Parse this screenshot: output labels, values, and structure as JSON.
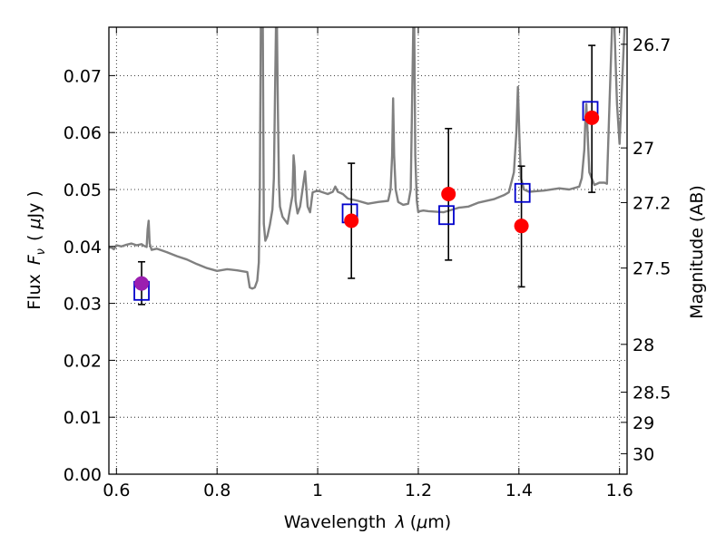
{
  "chart_data": {
    "type": "scatter",
    "title": "",
    "xlabel_parts": [
      "Wavelength",
      "λ",
      "(",
      "μ",
      "m)"
    ],
    "ylabel_parts": [
      "Flux",
      "F",
      "ν",
      "(",
      "μ",
      "Jy",
      ")"
    ],
    "y2label": "Magnitude (AB)",
    "xlim": [
      0.585,
      1.615
    ],
    "ylim": [
      0.0,
      0.0785
    ],
    "grid": true,
    "x_ticks": [
      0.6,
      0.8,
      1.0,
      1.2,
      1.4,
      1.6
    ],
    "x_tick_labels": [
      "0.6",
      "0.8",
      "1",
      "1.2",
      "1.4",
      "1.6"
    ],
    "y_ticks": [
      0.0,
      0.01,
      0.02,
      0.03,
      0.04,
      0.05,
      0.06,
      0.07
    ],
    "y_tick_labels": [
      "0.00",
      "0.01",
      "0.02",
      "0.03",
      "0.04",
      "0.05",
      "0.06",
      "0.07"
    ],
    "y2_ticks": [
      {
        "label": "26.7",
        "flux": 0.0755
      },
      {
        "label": "27",
        "flux": 0.0573
      },
      {
        "label": "27.2",
        "flux": 0.0477
      },
      {
        "label": "27.5",
        "flux": 0.0362
      },
      {
        "label": "28",
        "flux": 0.0228
      },
      {
        "label": "28.5",
        "flux": 0.0144
      },
      {
        "label": "29",
        "flux": 0.0091
      },
      {
        "label": "30",
        "flux": 0.0036
      }
    ],
    "colors": {
      "model": "#808080",
      "observed": "#ff0000",
      "model_phot": "#0000cc",
      "error_bar": "#000000",
      "first_point": "#9b1fb0"
    },
    "model_spectrum": {
      "x": [
        0.585,
        0.59,
        0.595,
        0.6,
        0.61,
        0.62,
        0.63,
        0.64,
        0.65,
        0.655,
        0.66,
        0.662,
        0.664,
        0.666,
        0.67,
        0.68,
        0.7,
        0.72,
        0.74,
        0.76,
        0.78,
        0.8,
        0.82,
        0.84,
        0.86,
        0.865,
        0.87,
        0.875,
        0.88,
        0.883,
        0.885,
        0.887,
        0.889,
        0.891,
        0.893,
        0.896,
        0.9,
        0.905,
        0.91,
        0.913,
        0.915,
        0.917,
        0.919,
        0.921,
        0.923,
        0.925,
        0.93,
        0.94,
        0.95,
        0.952,
        0.954,
        0.956,
        0.96,
        0.965,
        0.97,
        0.975,
        0.98,
        0.985,
        0.99,
        1.0,
        1.02,
        1.03,
        1.035,
        1.04,
        1.05,
        1.06,
        1.08,
        1.1,
        1.12,
        1.14,
        1.145,
        1.148,
        1.15,
        1.152,
        1.155,
        1.16,
        1.17,
        1.18,
        1.185,
        1.19,
        1.192,
        1.194,
        1.197,
        1.2,
        1.203,
        1.21,
        1.22,
        1.25,
        1.28,
        1.3,
        1.32,
        1.35,
        1.37,
        1.38,
        1.39,
        1.395,
        1.398,
        1.401,
        1.404,
        1.41,
        1.42,
        1.45,
        1.48,
        1.5,
        1.52,
        1.525,
        1.53,
        1.532,
        1.534,
        1.536,
        1.54,
        1.55,
        1.56,
        1.565,
        1.57,
        1.575,
        1.58,
        1.585,
        1.59,
        1.595,
        1.6,
        1.61,
        1.615
      ],
      "y": [
        0.0398,
        0.0398,
        0.0395,
        0.0402,
        0.04,
        0.0403,
        0.0405,
        0.0402,
        0.0404,
        0.0401,
        0.0399,
        0.043,
        0.0445,
        0.0405,
        0.0394,
        0.0396,
        0.039,
        0.0383,
        0.0377,
        0.0369,
        0.0362,
        0.0357,
        0.036,
        0.0358,
        0.0355,
        0.0328,
        0.0326,
        0.0328,
        0.034,
        0.0372,
        0.05,
        0.0785,
        0.0785,
        0.0785,
        0.044,
        0.041,
        0.0418,
        0.0438,
        0.0465,
        0.052,
        0.065,
        0.0785,
        0.0785,
        0.063,
        0.051,
        0.047,
        0.0452,
        0.044,
        0.049,
        0.056,
        0.054,
        0.048,
        0.0458,
        0.047,
        0.05,
        0.0532,
        0.047,
        0.046,
        0.0495,
        0.0498,
        0.0492,
        0.0496,
        0.0505,
        0.0496,
        0.0492,
        0.0484,
        0.048,
        0.0475,
        0.0478,
        0.048,
        0.05,
        0.056,
        0.066,
        0.056,
        0.05,
        0.0478,
        0.0473,
        0.0475,
        0.05,
        0.0785,
        0.0785,
        0.056,
        0.048,
        0.046,
        0.0462,
        0.0463,
        0.0462,
        0.046,
        0.0468,
        0.047,
        0.0477,
        0.0483,
        0.049,
        0.0495,
        0.053,
        0.06,
        0.068,
        0.059,
        0.052,
        0.05,
        0.0496,
        0.0498,
        0.0502,
        0.05,
        0.0505,
        0.052,
        0.057,
        0.062,
        0.065,
        0.061,
        0.053,
        0.0508,
        0.0512,
        0.0512,
        0.0512,
        0.051,
        0.065,
        0.0785,
        0.0785,
        0.065,
        0.058,
        0.0785,
        0.0785
      ]
    },
    "observed": [
      {
        "x": 0.65,
        "y": 0.0335,
        "yerr_low": 0.0298,
        "yerr_high": 0.0373
      },
      {
        "x": 1.067,
        "y": 0.0445,
        "yerr_low": 0.0344,
        "yerr_high": 0.0546
      },
      {
        "x": 1.26,
        "y": 0.0492,
        "yerr_low": 0.0376,
        "yerr_high": 0.0607
      },
      {
        "x": 1.405,
        "y": 0.0436,
        "yerr_low": 0.0329,
        "yerr_high": 0.0541
      },
      {
        "x": 1.545,
        "y": 0.0626,
        "yerr_low": 0.0495,
        "yerr_high": 0.0753
      }
    ],
    "model_phot": [
      {
        "x": 0.65,
        "y": 0.0322
      },
      {
        "x": 1.064,
        "y": 0.0458
      },
      {
        "x": 1.256,
        "y": 0.0455
      },
      {
        "x": 1.407,
        "y": 0.0494
      },
      {
        "x": 1.542,
        "y": 0.0638
      }
    ]
  }
}
